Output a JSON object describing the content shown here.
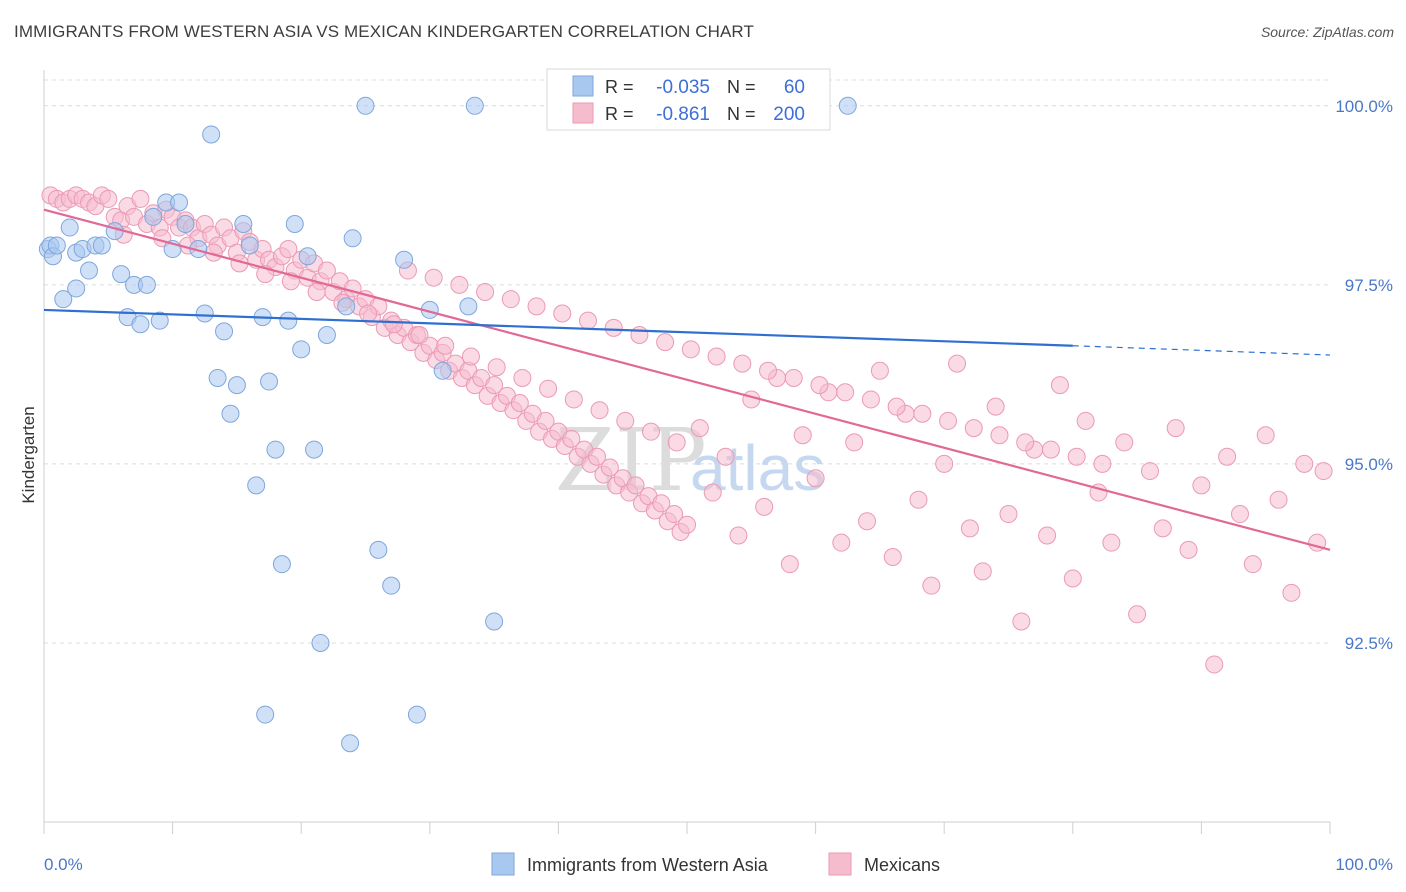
{
  "title": "IMMIGRANTS FROM WESTERN ASIA VS MEXICAN KINDERGARTEN CORRELATION CHART",
  "source": "Source: ZipAtlas.com",
  "watermark": {
    "zip": "ZIP",
    "atlas": "atlas"
  },
  "colors": {
    "blue_fill": "#a9c8f0",
    "blue_stroke": "#7ea6dc",
    "blue_line": "#2f6fd0",
    "pink_fill": "#f5bccd",
    "pink_stroke": "#eb9ab4",
    "pink_line": "#e26895",
    "grid": "#dcdcdc",
    "axis_text": "#4a78c7"
  },
  "legend_top": {
    "rows": [
      {
        "r_label": "R =",
        "r_value": "-0.035",
        "n_label": "N =",
        "n_value": "60",
        "series": "blue"
      },
      {
        "r_label": "R =",
        "r_value": "-0.861",
        "n_label": "N =",
        "n_value": "200",
        "series": "pink"
      }
    ]
  },
  "legend_bottom": [
    {
      "label": "Immigrants from Western Asia",
      "series": "blue"
    },
    {
      "label": "Mexicans",
      "series": "pink"
    }
  ],
  "chart_data": {
    "type": "scatter",
    "title": "IMMIGRANTS FROM WESTERN ASIA VS MEXICAN KINDERGARTEN CORRELATION CHART",
    "xlabel": "",
    "ylabel": "Kindergarten",
    "xlim": [
      0,
      100
    ],
    "ylim": [
      90.0,
      100.5
    ],
    "x_tick_labels": [
      "0.0%",
      "100.0%"
    ],
    "y_ticks": [
      92.5,
      95.0,
      97.5,
      100.0
    ],
    "y_tick_labels": [
      "92.5%",
      "95.0%",
      "97.5%",
      "100.0%"
    ],
    "grid": true,
    "legend_placement": "top-center and bottom",
    "series": [
      {
        "name": "Immigrants from Western Asia",
        "color": "blue",
        "r": -0.035,
        "n": 60,
        "trend": {
          "x0": 0,
          "y0": 97.15,
          "x1": 80,
          "y1": 96.65,
          "dashed_to_x": 100,
          "dashed_to_y": 96.52
        },
        "points": [
          [
            0.3,
            98.0
          ],
          [
            0.5,
            98.05
          ],
          [
            0.7,
            97.9
          ],
          [
            1.0,
            98.05
          ],
          [
            1.5,
            97.3
          ],
          [
            2.0,
            98.3
          ],
          [
            2.5,
            97.95
          ],
          [
            2.5,
            97.45
          ],
          [
            3.0,
            98.0
          ],
          [
            3.5,
            97.7
          ],
          [
            4.0,
            98.05
          ],
          [
            4.5,
            98.05
          ],
          [
            5.5,
            98.25
          ],
          [
            6.0,
            97.65
          ],
          [
            6.5,
            97.05
          ],
          [
            7.0,
            97.5
          ],
          [
            7.5,
            96.95
          ],
          [
            8.0,
            97.5
          ],
          [
            8.5,
            98.45
          ],
          [
            9.0,
            97.0
          ],
          [
            9.5,
            98.65
          ],
          [
            10.0,
            98.0
          ],
          [
            10.5,
            98.65
          ],
          [
            11.0,
            98.35
          ],
          [
            12.0,
            98.0
          ],
          [
            12.5,
            97.1
          ],
          [
            13.0,
            99.6
          ],
          [
            13.5,
            96.2
          ],
          [
            14.0,
            96.85
          ],
          [
            15.0,
            96.1
          ],
          [
            15.5,
            98.35
          ],
          [
            16.0,
            98.05
          ],
          [
            17.0,
            97.05
          ],
          [
            17.5,
            96.15
          ],
          [
            18.0,
            95.2
          ],
          [
            18.5,
            93.6
          ],
          [
            19.0,
            97.0
          ],
          [
            19.5,
            98.35
          ],
          [
            20.0,
            96.6
          ],
          [
            20.5,
            97.9
          ],
          [
            21.0,
            95.2
          ],
          [
            21.5,
            92.5
          ],
          [
            22.0,
            96.8
          ],
          [
            23.5,
            97.2
          ],
          [
            24.0,
            98.15
          ],
          [
            25.0,
            100.0
          ],
          [
            26.0,
            93.8
          ],
          [
            27.0,
            93.3
          ],
          [
            28.0,
            97.85
          ],
          [
            29.0,
            91.5
          ],
          [
            30.0,
            97.15
          ],
          [
            31.0,
            96.3
          ],
          [
            33.0,
            97.2
          ],
          [
            14.5,
            95.7
          ],
          [
            16.5,
            94.7
          ],
          [
            17.2,
            91.5
          ],
          [
            23.8,
            91.1
          ],
          [
            33.5,
            100.0
          ],
          [
            35.0,
            92.8
          ],
          [
            62.5,
            100.0
          ]
        ]
      },
      {
        "name": "Mexicans",
        "color": "pink",
        "r": -0.861,
        "n": 200,
        "trend": {
          "x0": 0,
          "y0": 98.55,
          "x1": 100,
          "y1": 93.8
        },
        "points": [
          [
            0.5,
            98.75
          ],
          [
            1.0,
            98.7
          ],
          [
            1.5,
            98.65
          ],
          [
            2.0,
            98.7
          ],
          [
            2.5,
            98.75
          ],
          [
            3.0,
            98.7
          ],
          [
            3.5,
            98.65
          ],
          [
            4.0,
            98.6
          ],
          [
            4.5,
            98.75
          ],
          [
            5.0,
            98.7
          ],
          [
            5.5,
            98.45
          ],
          [
            6.0,
            98.4
          ],
          [
            6.5,
            98.6
          ],
          [
            7.0,
            98.45
          ],
          [
            7.5,
            98.7
          ],
          [
            8.0,
            98.35
          ],
          [
            8.5,
            98.5
          ],
          [
            9.0,
            98.3
          ],
          [
            9.5,
            98.55
          ],
          [
            10.0,
            98.45
          ],
          [
            10.5,
            98.3
          ],
          [
            11.0,
            98.4
          ],
          [
            11.5,
            98.3
          ],
          [
            12.0,
            98.15
          ],
          [
            12.5,
            98.35
          ],
          [
            13.0,
            98.2
          ],
          [
            13.5,
            98.05
          ],
          [
            14.0,
            98.3
          ],
          [
            14.5,
            98.15
          ],
          [
            15.0,
            97.95
          ],
          [
            15.5,
            98.25
          ],
          [
            16.0,
            98.1
          ],
          [
            16.5,
            97.85
          ],
          [
            17.0,
            98.0
          ],
          [
            17.5,
            97.85
          ],
          [
            18.0,
            97.75
          ],
          [
            18.5,
            97.9
          ],
          [
            19.0,
            98.0
          ],
          [
            19.5,
            97.7
          ],
          [
            20.0,
            97.85
          ],
          [
            20.5,
            97.6
          ],
          [
            21.0,
            97.8
          ],
          [
            21.5,
            97.55
          ],
          [
            22.0,
            97.7
          ],
          [
            22.5,
            97.4
          ],
          [
            23.0,
            97.55
          ],
          [
            23.5,
            97.3
          ],
          [
            24.0,
            97.45
          ],
          [
            24.5,
            97.2
          ],
          [
            25.0,
            97.3
          ],
          [
            25.5,
            97.05
          ],
          [
            26.0,
            97.2
          ],
          [
            26.5,
            96.9
          ],
          [
            27.0,
            97.0
          ],
          [
            27.5,
            96.8
          ],
          [
            28.0,
            96.9
          ],
          [
            28.5,
            96.7
          ],
          [
            29.0,
            96.8
          ],
          [
            29.5,
            96.55
          ],
          [
            30.0,
            96.65
          ],
          [
            30.5,
            96.45
          ],
          [
            31.0,
            96.55
          ],
          [
            31.5,
            96.3
          ],
          [
            32.0,
            96.4
          ],
          [
            32.5,
            96.2
          ],
          [
            33.0,
            96.3
          ],
          [
            33.5,
            96.1
          ],
          [
            34.0,
            96.2
          ],
          [
            34.5,
            95.95
          ],
          [
            35.0,
            96.1
          ],
          [
            35.5,
            95.85
          ],
          [
            36.0,
            95.95
          ],
          [
            36.5,
            95.75
          ],
          [
            37.0,
            95.85
          ],
          [
            37.5,
            95.6
          ],
          [
            38.0,
            95.7
          ],
          [
            38.5,
            95.45
          ],
          [
            39.0,
            95.6
          ],
          [
            39.5,
            95.35
          ],
          [
            40.0,
            95.45
          ],
          [
            40.5,
            95.25
          ],
          [
            41.0,
            95.35
          ],
          [
            41.5,
            95.1
          ],
          [
            42.0,
            95.2
          ],
          [
            42.5,
            95.0
          ],
          [
            43.0,
            95.1
          ],
          [
            43.5,
            94.85
          ],
          [
            44.0,
            94.95
          ],
          [
            44.5,
            94.7
          ],
          [
            45.0,
            94.8
          ],
          [
            45.5,
            94.6
          ],
          [
            46.0,
            94.7
          ],
          [
            46.5,
            94.45
          ],
          [
            47.0,
            94.55
          ],
          [
            47.5,
            94.35
          ],
          [
            48.0,
            94.45
          ],
          [
            48.5,
            94.2
          ],
          [
            49.0,
            94.3
          ],
          [
            49.5,
            94.05
          ],
          [
            50.0,
            94.15
          ],
          [
            51.0,
            95.5
          ],
          [
            52.0,
            94.6
          ],
          [
            53.0,
            95.1
          ],
          [
            54.0,
            94.0
          ],
          [
            55.0,
            95.9
          ],
          [
            56.0,
            94.4
          ],
          [
            57.0,
            96.2
          ],
          [
            58.0,
            93.6
          ],
          [
            59.0,
            95.4
          ],
          [
            60.0,
            94.8
          ],
          [
            61.0,
            96.0
          ],
          [
            62.0,
            93.9
          ],
          [
            63.0,
            95.3
          ],
          [
            64.0,
            94.2
          ],
          [
            65.0,
            96.3
          ],
          [
            66.0,
            93.7
          ],
          [
            67.0,
            95.7
          ],
          [
            68.0,
            94.5
          ],
          [
            69.0,
            93.3
          ],
          [
            70.0,
            95.0
          ],
          [
            71.0,
            96.4
          ],
          [
            72.0,
            94.1
          ],
          [
            73.0,
            93.5
          ],
          [
            74.0,
            95.8
          ],
          [
            75.0,
            94.3
          ],
          [
            76.0,
            92.8
          ],
          [
            77.0,
            95.2
          ],
          [
            78.0,
            94.0
          ],
          [
            79.0,
            96.1
          ],
          [
            80.0,
            93.4
          ],
          [
            81.0,
            95.6
          ],
          [
            82.0,
            94.6
          ],
          [
            83.0,
            93.9
          ],
          [
            84.0,
            95.3
          ],
          [
            85.0,
            92.9
          ],
          [
            86.0,
            94.9
          ],
          [
            87.0,
            94.1
          ],
          [
            88.0,
            95.5
          ],
          [
            89.0,
            93.8
          ],
          [
            90.0,
            94.7
          ],
          [
            91.0,
            92.2
          ],
          [
            92.0,
            95.1
          ],
          [
            93.0,
            94.3
          ],
          [
            94.0,
            93.6
          ],
          [
            95.0,
            95.4
          ],
          [
            96.0,
            94.5
          ],
          [
            97.0,
            93.2
          ],
          [
            98.0,
            95.0
          ],
          [
            99.0,
            93.9
          ],
          [
            99.5,
            94.9
          ],
          [
            9.2,
            98.15
          ],
          [
            6.2,
            98.2
          ],
          [
            11.2,
            98.05
          ],
          [
            13.2,
            97.95
          ],
          [
            15.2,
            97.8
          ],
          [
            17.2,
            97.65
          ],
          [
            19.2,
            97.55
          ],
          [
            21.2,
            97.4
          ],
          [
            23.2,
            97.25
          ],
          [
            25.2,
            97.1
          ],
          [
            27.2,
            96.95
          ],
          [
            29.2,
            96.8
          ],
          [
            31.2,
            96.65
          ],
          [
            33.2,
            96.5
          ],
          [
            35.2,
            96.35
          ],
          [
            37.2,
            96.2
          ],
          [
            39.2,
            96.05
          ],
          [
            41.2,
            95.9
          ],
          [
            43.2,
            95.75
          ],
          [
            45.2,
            95.6
          ],
          [
            47.2,
            95.45
          ],
          [
            49.2,
            95.3
          ],
          [
            28.3,
            97.7
          ],
          [
            30.3,
            97.6
          ],
          [
            32.3,
            97.5
          ],
          [
            34.3,
            97.4
          ],
          [
            36.3,
            97.3
          ],
          [
            38.3,
            97.2
          ],
          [
            40.3,
            97.1
          ],
          [
            42.3,
            97.0
          ],
          [
            44.3,
            96.9
          ],
          [
            46.3,
            96.8
          ],
          [
            48.3,
            96.7
          ],
          [
            50.3,
            96.6
          ],
          [
            52.3,
            96.5
          ],
          [
            54.3,
            96.4
          ],
          [
            56.3,
            96.3
          ],
          [
            58.3,
            96.2
          ],
          [
            60.3,
            96.1
          ],
          [
            62.3,
            96.0
          ],
          [
            64.3,
            95.9
          ],
          [
            66.3,
            95.8
          ],
          [
            68.3,
            95.7
          ],
          [
            70.3,
            95.6
          ],
          [
            72.3,
            95.5
          ],
          [
            74.3,
            95.4
          ],
          [
            76.3,
            95.3
          ],
          [
            78.3,
            95.2
          ],
          [
            80.3,
            95.1
          ],
          [
            82.3,
            95.0
          ]
        ]
      }
    ]
  }
}
